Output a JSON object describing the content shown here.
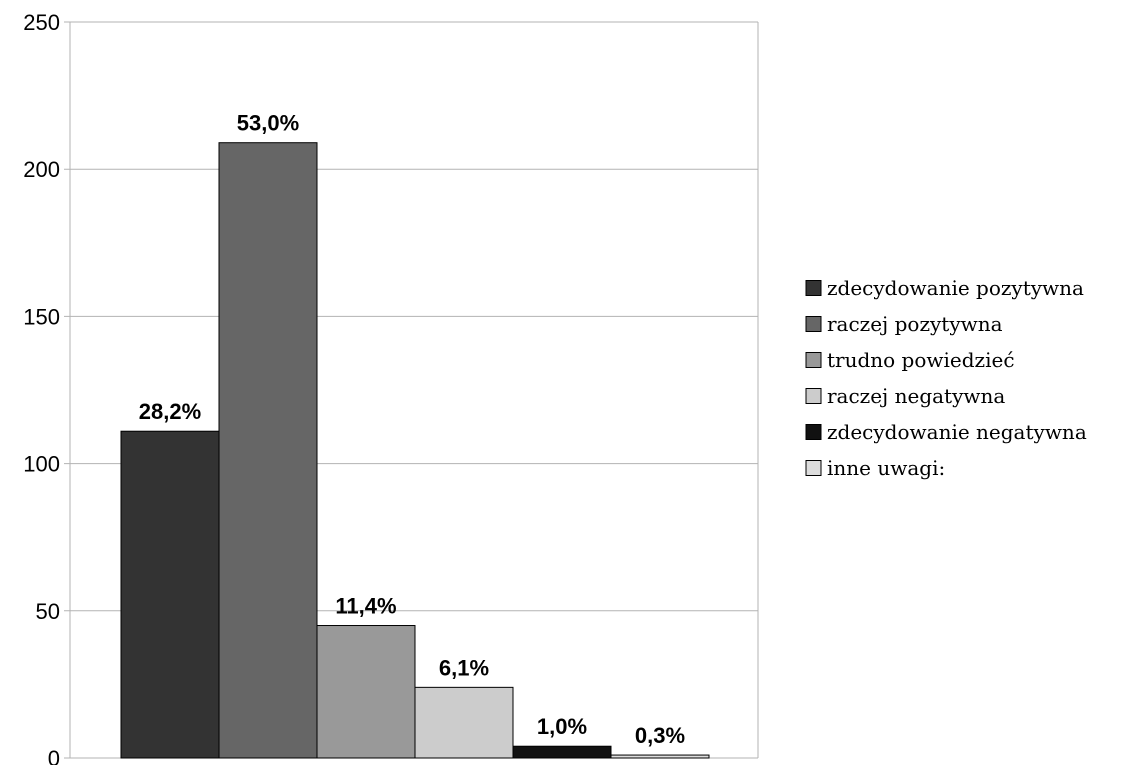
{
  "chart_data": {
    "type": "bar",
    "categories": [
      "zdecydowanie pozytywna",
      "raczej pozytywna",
      "trudno powiedzieć",
      "raczej negatywna",
      "zdecydowanie negatywna",
      "inne uwagi:"
    ],
    "values": [
      111,
      209,
      45,
      24,
      4,
      1
    ],
    "data_labels": [
      "28,2%",
      "53,0%",
      "11,4%",
      "6,1%",
      "1,0%",
      "0,3%"
    ],
    "colors": [
      "#333333",
      "#666666",
      "#999999",
      "#cccccc",
      "#111111",
      "#dddddd"
    ],
    "yticks": [
      "0",
      "50",
      "100",
      "150",
      "200",
      "250"
    ],
    "ylim": [
      0,
      250
    ],
    "grid": true,
    "legend_position": "right",
    "title": "",
    "xlabel": "",
    "ylabel": ""
  }
}
